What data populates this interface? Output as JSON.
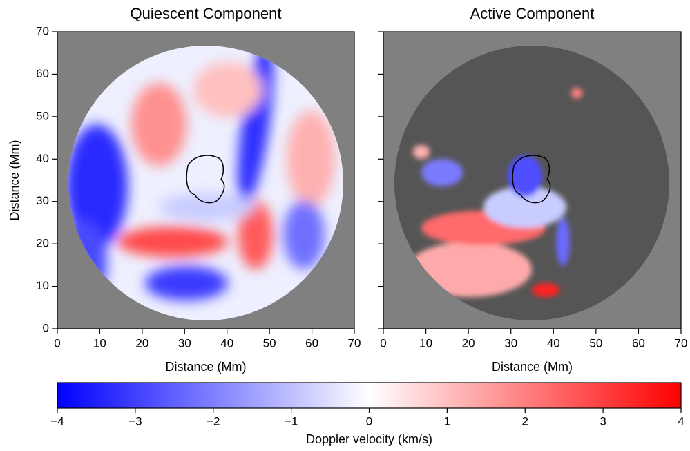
{
  "chart_data": [
    {
      "type": "image",
      "title": "Quiescent Component",
      "x_label": "Distance (Mm)",
      "y_label": "Distance (Mm)",
      "xlim": [
        0,
        70
      ],
      "ylim": [
        0,
        70
      ],
      "xticks": [
        0,
        10,
        20,
        30,
        40,
        50,
        60,
        70
      ],
      "yticks": [
        0,
        10,
        20,
        30,
        40,
        50,
        60,
        70
      ]
    },
    {
      "type": "image",
      "title": "Active Component",
      "x_label": "Distance (Mm)",
      "xlim": [
        0,
        70
      ],
      "ylim": [
        0,
        70
      ],
      "xticks": [
        0,
        10,
        20,
        30,
        40,
        50,
        60,
        70
      ],
      "yticks": [
        0,
        10,
        20,
        30,
        40,
        50,
        60,
        70
      ]
    }
  ],
  "colorbar": {
    "label": "Doppler velocity (km/s)",
    "lim": [
      -4,
      4
    ],
    "ticks": [
      {
        "value": -4,
        "label": "−4"
      },
      {
        "value": -3,
        "label": "−3"
      },
      {
        "value": -2,
        "label": "−2"
      },
      {
        "value": -1,
        "label": "−1"
      },
      0,
      1,
      2,
      3,
      4
    ],
    "colormap": [
      "#0000ff",
      "#ffffff",
      "#ff0000"
    ]
  }
}
